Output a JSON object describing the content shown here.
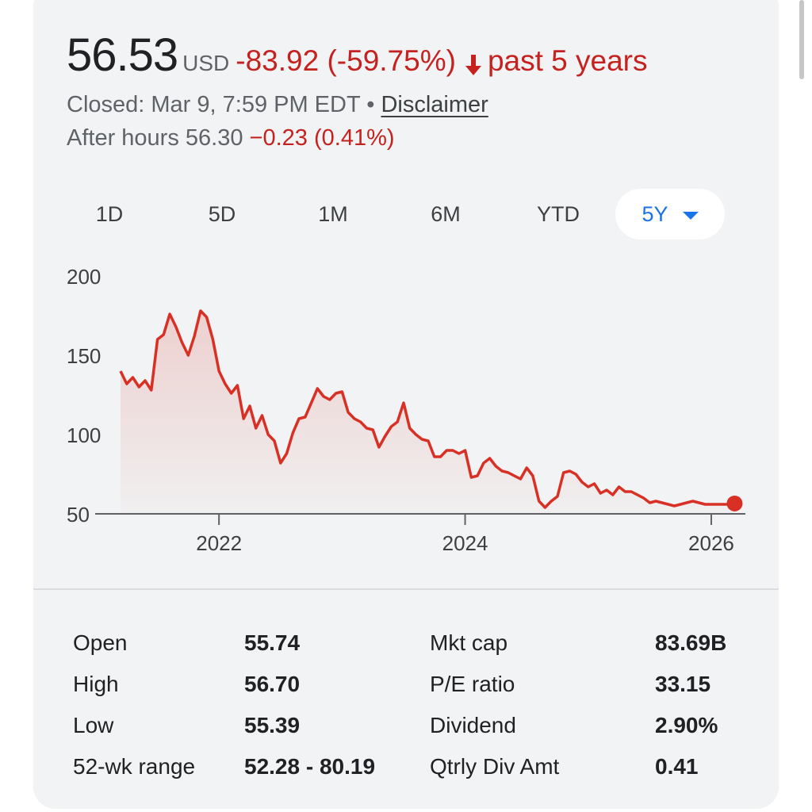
{
  "quote": {
    "price": "56.53",
    "currency": "USD",
    "change": "-83.92 (-59.75%)",
    "period": "past 5 years",
    "closed_text": "Closed: Mar 9, 7:59 PM EDT",
    "separator": "•",
    "disclaimer": "Disclaimer",
    "after_hours_label": "After hours 56.30",
    "after_hours_change": "−0.23 (0.41%)"
  },
  "colors": {
    "negative": "#c5221f",
    "accent": "#1a73e8",
    "line": "#d93025"
  },
  "ranges": [
    {
      "label": "1D"
    },
    {
      "label": "5D"
    },
    {
      "label": "1M"
    },
    {
      "label": "6M"
    },
    {
      "label": "YTD"
    },
    {
      "label": "5Y",
      "active": true
    }
  ],
  "chart_data": {
    "type": "area",
    "y_ticks": [
      "200",
      "150",
      "100",
      "50"
    ],
    "ylim": [
      50,
      200
    ],
    "x_ticks": [
      "2022",
      "2024",
      "2026"
    ],
    "xlim": [
      2021.2,
      2026.2
    ],
    "grid": false,
    "series": [
      {
        "x": [
          2021.2,
          2021.25,
          2021.3,
          2021.35,
          2021.4,
          2021.45,
          2021.5,
          2021.55,
          2021.6,
          2021.65,
          2021.7,
          2021.75,
          2021.8,
          2021.85,
          2021.9,
          2021.95,
          2022.0,
          2022.05,
          2022.1,
          2022.15,
          2022.2,
          2022.25,
          2022.3,
          2022.35,
          2022.4,
          2022.45,
          2022.5,
          2022.55,
          2022.6,
          2022.65,
          2022.7,
          2022.75,
          2022.8,
          2022.85,
          2022.9,
          2022.95,
          2023.0,
          2023.05,
          2023.1,
          2023.15,
          2023.2,
          2023.25,
          2023.3,
          2023.35,
          2023.4,
          2023.45,
          2023.5,
          2023.55,
          2023.6,
          2023.65,
          2023.7,
          2023.75,
          2023.8,
          2023.85,
          2023.9,
          2023.95,
          2024.0,
          2024.05,
          2024.1,
          2024.15,
          2024.2,
          2024.25,
          2024.3,
          2024.35,
          2024.4,
          2024.45,
          2024.5,
          2024.55,
          2024.6,
          2024.65,
          2024.7,
          2024.75,
          2024.8,
          2024.85,
          2024.9,
          2024.95,
          2025.0,
          2025.05,
          2025.1,
          2025.15,
          2025.2,
          2025.25,
          2025.3,
          2025.35,
          2025.4,
          2025.45,
          2025.5,
          2025.55,
          2025.6,
          2025.65,
          2025.7,
          2025.75,
          2025.8,
          2025.85,
          2025.9,
          2025.95,
          2026.0,
          2026.05,
          2026.1,
          2026.15,
          2026.19
        ],
        "y": [
          140,
          132,
          136,
          130,
          134,
          128,
          160,
          163,
          176,
          168,
          158,
          150,
          162,
          178,
          174,
          160,
          140,
          132,
          126,
          131,
          110,
          118,
          104,
          112,
          100,
          96,
          82,
          88,
          101,
          110,
          111,
          120,
          129,
          124,
          122,
          126,
          127,
          114,
          110,
          108,
          104,
          103,
          92,
          99,
          105,
          108,
          120,
          104,
          100,
          97,
          96,
          86,
          86,
          90,
          90,
          88,
          90,
          73,
          74,
          82,
          85,
          80,
          77,
          76,
          74,
          72,
          79,
          74,
          58,
          54,
          58,
          61,
          76,
          77,
          75,
          70,
          67,
          69,
          63,
          65,
          62,
          67,
          64,
          64,
          62,
          60,
          57,
          58,
          57,
          56,
          55,
          56,
          57,
          58,
          57,
          56,
          56,
          56,
          56,
          56,
          56.53
        ],
        "end_marker": true
      }
    ]
  },
  "stats": {
    "left": [
      {
        "label": "Open",
        "value": "55.74"
      },
      {
        "label": "High",
        "value": "56.70"
      },
      {
        "label": "Low",
        "value": "55.39"
      },
      {
        "label": "52-wk range",
        "value": "52.28 - 80.19"
      }
    ],
    "right": [
      {
        "label": "Mkt cap",
        "value": "83.69B"
      },
      {
        "label": "P/E ratio",
        "value": "33.15"
      },
      {
        "label": "Dividend",
        "value": "2.90%"
      },
      {
        "label": "Qtrly Div Amt",
        "value": "0.41"
      }
    ]
  }
}
